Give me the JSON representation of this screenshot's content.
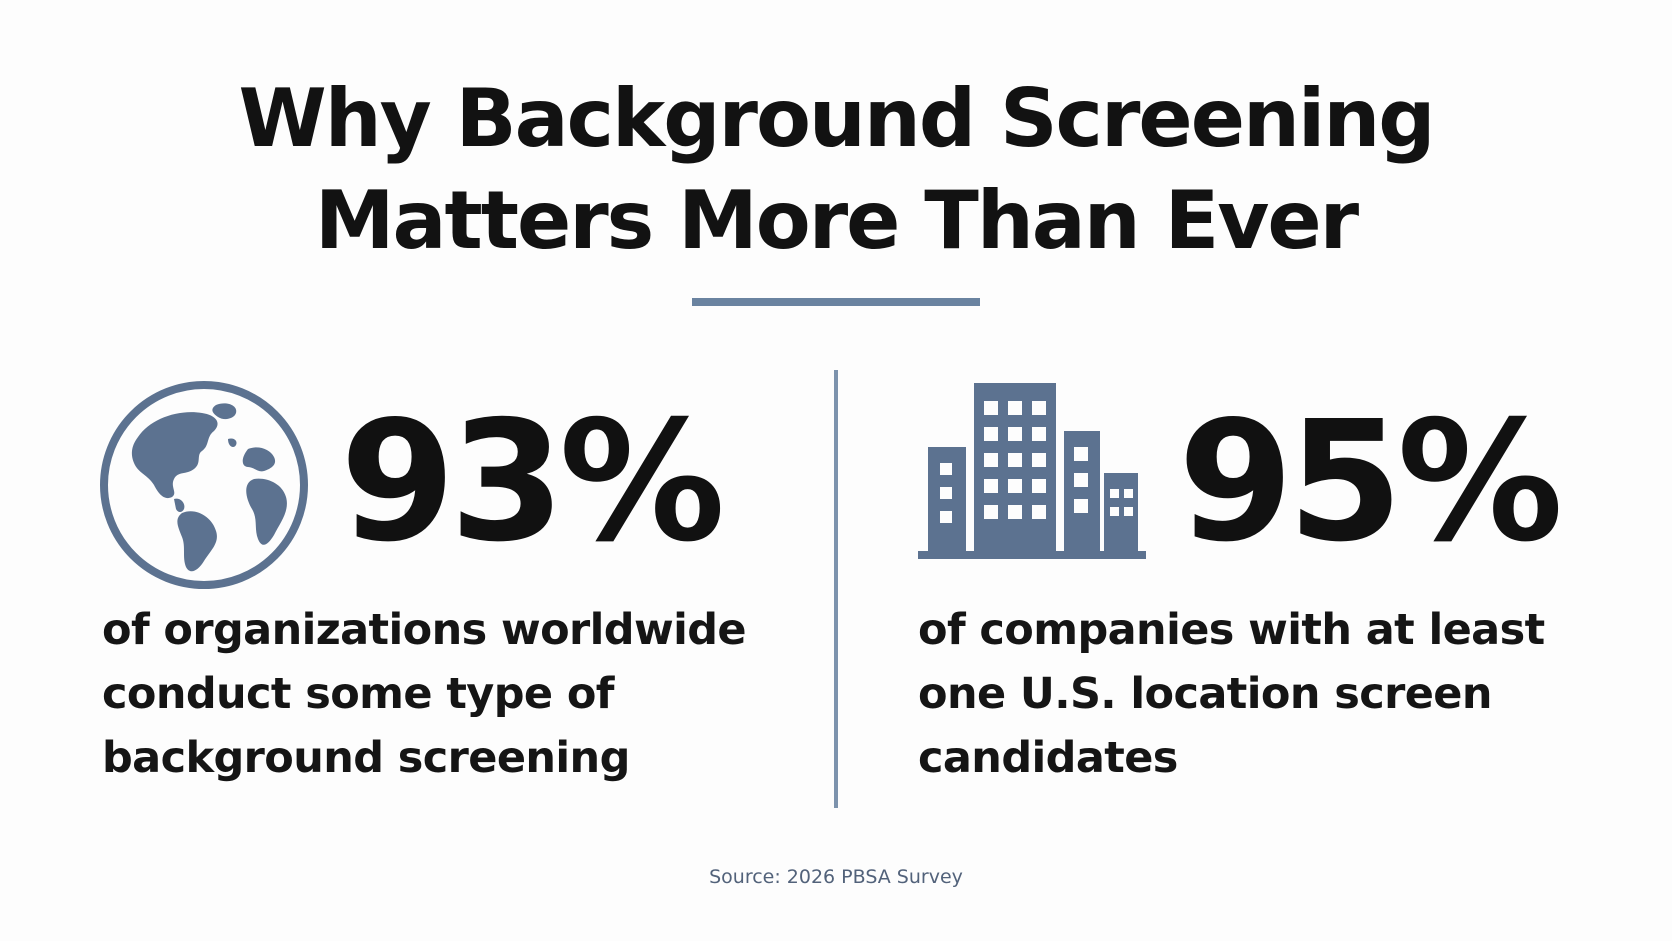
{
  "header": {
    "title_line1": "Why Background Screening",
    "title_line2": "Matters More Than Ever"
  },
  "stats": [
    {
      "icon": "globe-icon",
      "value": "93%",
      "description_lines": [
        "of organizations worldwide",
        "conduct some type of",
        "background screening"
      ]
    },
    {
      "icon": "buildings-icon",
      "value": "95%",
      "description_lines": [
        "of companies with at least",
        "one U.S. location screen",
        "candidates"
      ]
    }
  ],
  "footer": {
    "source": "Source: 2026 PBSA Survey"
  },
  "colors": {
    "accent": "#6a83a0",
    "icon": "#5c7290",
    "text": "#121212",
    "source_text": "#52627a"
  }
}
